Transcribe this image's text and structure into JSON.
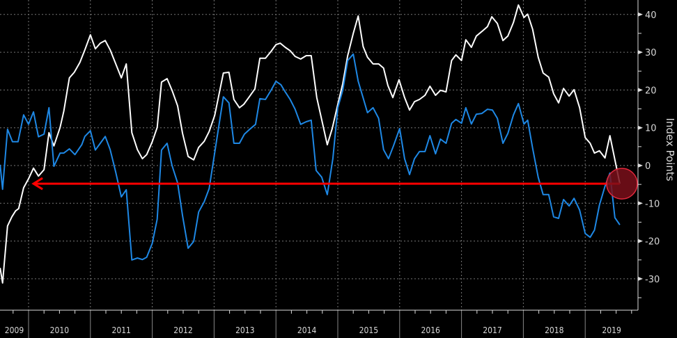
{
  "chart_data": {
    "type": "line",
    "title": "",
    "xlabel": "",
    "ylabel": "Index Points",
    "xlim": [
      2009.54,
      2019.8
    ],
    "ylim": [
      -38,
      44
    ],
    "grid": true,
    "yticks": [
      40,
      30,
      20,
      10,
      0,
      -10,
      -20,
      -30
    ],
    "ytick_labels": [
      "40",
      "30",
      "20",
      "10",
      "0",
      "-10",
      "-20",
      "-30"
    ],
    "xtick_labels": [
      "2009",
      "2010",
      "2011",
      "2012",
      "2013",
      "2014",
      "2015",
      "2016",
      "2017",
      "2018",
      "2019"
    ],
    "xtick_years": [
      2009,
      2010,
      2011,
      2012,
      2013,
      2014,
      2015,
      2016,
      2017,
      2018,
      2019
    ],
    "series": [
      {
        "color": "#ffffff",
        "x": [
          2009.54,
          2009.58,
          2009.66,
          2009.73,
          2009.79,
          2009.84,
          2009.92,
          2010.0,
          2010.08,
          2010.16,
          2010.25,
          2010.33,
          2010.41,
          2010.51,
          2010.57,
          2010.66,
          2010.74,
          2010.83,
          2010.91,
          2011.0,
          2011.08,
          2011.16,
          2011.24,
          2011.32,
          2011.41,
          2011.5,
          2011.58,
          2011.67,
          2011.76,
          2011.84,
          2011.91,
          2012.0,
          2012.08,
          2012.15,
          2012.24,
          2012.32,
          2012.41,
          2012.49,
          2012.58,
          2012.67,
          2012.75,
          2012.84,
          2012.92,
          2013.01,
          2013.15,
          2013.24,
          2013.32,
          2013.41,
          2013.48,
          2013.56,
          2013.66,
          2013.74,
          2013.83,
          2013.92,
          2014.0,
          2014.07,
          2014.15,
          2014.23,
          2014.31,
          2014.4,
          2014.49,
          2014.57,
          2014.66,
          2014.83,
          2014.91,
          2015.0,
          2015.08,
          2015.16,
          2015.25,
          2015.33,
          2015.41,
          2015.48,
          2015.57,
          2015.66,
          2015.74,
          2015.81,
          2015.89,
          2015.99,
          2016.08,
          2016.16,
          2016.24,
          2016.32,
          2016.41,
          2016.49,
          2016.58,
          2016.66,
          2016.75,
          2016.84,
          2016.91,
          2017.0,
          2017.07,
          2017.16,
          2017.24,
          2017.33,
          2017.42,
          2017.49,
          2017.58,
          2017.67,
          2017.75,
          2017.84,
          2017.92,
          2018.01,
          2018.07,
          2018.15,
          2018.24,
          2018.32,
          2018.41,
          2018.49,
          2018.57,
          2018.65,
          2018.74,
          2018.82,
          2018.91,
          2019.0,
          2019.08,
          2019.15,
          2019.23,
          2019.32,
          2019.4,
          2019.56
        ],
        "values": [
          -27.1,
          -31.1,
          -16.0,
          -13.6,
          -12.0,
          -11.4,
          -5.9,
          -3.5,
          -0.7,
          -2.8,
          -1.1,
          8.7,
          5.2,
          10.1,
          14.4,
          23.2,
          24.7,
          27.3,
          30.6,
          34.6,
          30.9,
          32.4,
          33.1,
          30.6,
          26.9,
          23.2,
          26.9,
          8.7,
          4.2,
          1.8,
          2.9,
          6.3,
          10.1,
          22.1,
          23.0,
          19.9,
          15.8,
          8.5,
          2.4,
          1.5,
          4.8,
          6.4,
          9.0,
          13.3,
          24.5,
          24.7,
          17.5,
          15.3,
          16.2,
          18.0,
          20.3,
          28.4,
          28.4,
          30.2,
          32.0,
          32.4,
          31.3,
          30.4,
          28.9,
          28.2,
          29.1,
          29.1,
          18.0,
          5.5,
          9.8,
          16.2,
          21.7,
          29.1,
          35.0,
          39.6,
          31.5,
          28.7,
          26.9,
          26.9,
          25.8,
          21.2,
          18.0,
          22.7,
          18.0,
          14.7,
          16.9,
          17.5,
          18.6,
          21.0,
          18.6,
          19.9,
          19.5,
          27.8,
          29.3,
          27.8,
          33.3,
          31.3,
          34.3,
          35.5,
          36.8,
          39.4,
          37.6,
          33.1,
          34.3,
          37.9,
          42.5,
          39.2,
          40.1,
          36.1,
          28.7,
          24.5,
          23.4,
          19.0,
          16.6,
          20.4,
          18.4,
          20.1,
          15.3,
          7.4,
          5.9,
          3.3,
          3.9,
          2.0,
          7.9,
          -4.8
        ]
      },
      {
        "color": "#1e88e5",
        "x": [
          2009.54,
          2009.58,
          2009.66,
          2009.74,
          2009.83,
          2009.92,
          2010.0,
          2010.08,
          2010.16,
          2010.25,
          2010.33,
          2010.41,
          2010.51,
          2010.57,
          2010.66,
          2010.75,
          2010.86,
          2010.91,
          2011.0,
          2011.08,
          2011.16,
          2011.24,
          2011.32,
          2011.41,
          2011.5,
          2011.58,
          2011.67,
          2011.76,
          2011.84,
          2011.91,
          2012.0,
          2012.08,
          2012.15,
          2012.24,
          2012.32,
          2012.41,
          2012.49,
          2012.58,
          2012.67,
          2012.75,
          2012.84,
          2012.92,
          2013.15,
          2013.24,
          2013.32,
          2013.41,
          2013.49,
          2013.59,
          2013.67,
          2013.74,
          2013.83,
          2013.92,
          2014.0,
          2014.08,
          2014.15,
          2014.23,
          2014.31,
          2014.4,
          2014.49,
          2014.57,
          2014.65,
          2014.74,
          2014.83,
          2014.92,
          2015.0,
          2015.08,
          2015.16,
          2015.25,
          2015.33,
          2015.41,
          2015.48,
          2015.57,
          2015.66,
          2015.74,
          2015.82,
          2015.9,
          2016.0,
          2016.08,
          2016.16,
          2016.24,
          2016.32,
          2016.41,
          2016.49,
          2016.58,
          2016.66,
          2016.75,
          2016.84,
          2016.91,
          2017.0,
          2017.07,
          2017.16,
          2017.24,
          2017.33,
          2017.42,
          2017.5,
          2017.58,
          2017.67,
          2017.75,
          2017.84,
          2017.92,
          2018.01,
          2018.07,
          2018.15,
          2018.24,
          2018.32,
          2018.41,
          2018.49,
          2018.57,
          2018.65,
          2018.74,
          2018.82,
          2018.91,
          2019.0,
          2019.08,
          2019.15,
          2019.23,
          2019.32,
          2019.4,
          2019.48,
          2019.56
        ],
        "values": [
          0.2,
          -6.3,
          9.6,
          6.3,
          6.3,
          13.4,
          10.9,
          14.2,
          7.6,
          8.3,
          15.3,
          -0.2,
          3.3,
          3.3,
          4.4,
          2.9,
          5.5,
          7.7,
          9.2,
          4.1,
          5.9,
          7.7,
          4.2,
          -1.8,
          -8.3,
          -6.4,
          -25.0,
          -24.5,
          -24.9,
          -24.3,
          -20.6,
          -14.2,
          4.1,
          5.9,
          0.0,
          -4.6,
          -13.3,
          -21.9,
          -20.1,
          -12.3,
          -9.6,
          -6.1,
          18.2,
          16.6,
          5.9,
          5.9,
          8.3,
          9.8,
          10.9,
          17.7,
          17.5,
          19.9,
          22.3,
          21.4,
          19.5,
          17.5,
          14.9,
          10.9,
          11.6,
          12.0,
          -1.3,
          -3.1,
          -7.7,
          1.8,
          15.3,
          19.9,
          27.8,
          29.5,
          22.3,
          17.9,
          14.0,
          15.3,
          12.5,
          4.2,
          1.8,
          5.2,
          9.8,
          1.8,
          -2.4,
          1.8,
          3.7,
          3.7,
          7.9,
          3.1,
          7.0,
          5.9,
          11.2,
          12.2,
          11.2,
          15.3,
          11.0,
          13.6,
          13.8,
          14.9,
          14.7,
          12.5,
          5.9,
          8.5,
          13.4,
          16.4,
          11.0,
          12.0,
          4.6,
          -3.1,
          -7.7,
          -7.7,
          -13.6,
          -14.0,
          -9.0,
          -10.7,
          -8.7,
          -11.8,
          -18.0,
          -19.0,
          -17.1,
          -10.5,
          -5.5,
          -2.0,
          -13.8,
          -15.7
        ]
      }
    ],
    "annotations": [
      {
        "type": "arrow",
        "color": "#ff0000",
        "y": -4.8,
        "x_from": 2019.56,
        "x_to": 2010.08
      },
      {
        "type": "circle",
        "color": "#7a0f1a",
        "x": 2019.56,
        "y": -4.8
      }
    ]
  }
}
